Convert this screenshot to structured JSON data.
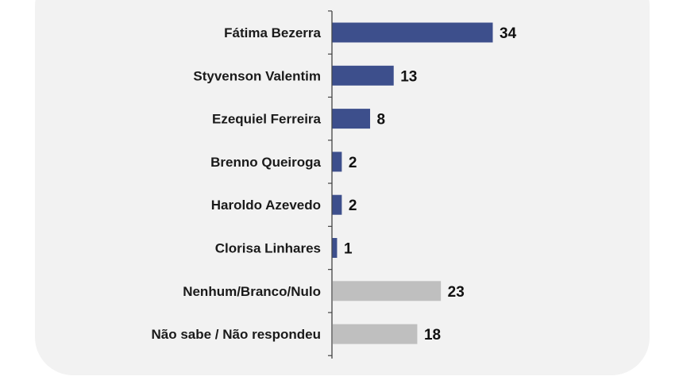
{
  "chart_data": {
    "type": "bar",
    "orientation": "horizontal",
    "categories": [
      "Fátima Bezerra",
      "Styvenson Valentim",
      "Ezequiel Ferreira",
      "Brenno Queiroga",
      "Haroldo Azevedo",
      "Clorisa Linhares",
      "Nenhum/Branco/Nulo",
      "Não sabe / Não respondeu"
    ],
    "values": [
      34,
      13,
      8,
      2,
      2,
      1,
      23,
      18
    ],
    "bar_colors": [
      "#3d4f8c",
      "#3d4f8c",
      "#3d4f8c",
      "#3d4f8c",
      "#3d4f8c",
      "#3d4f8c",
      "#bfbfbf",
      "#bfbfbf"
    ],
    "xlim": [
      0,
      34
    ],
    "grid": false,
    "legend": "none"
  }
}
